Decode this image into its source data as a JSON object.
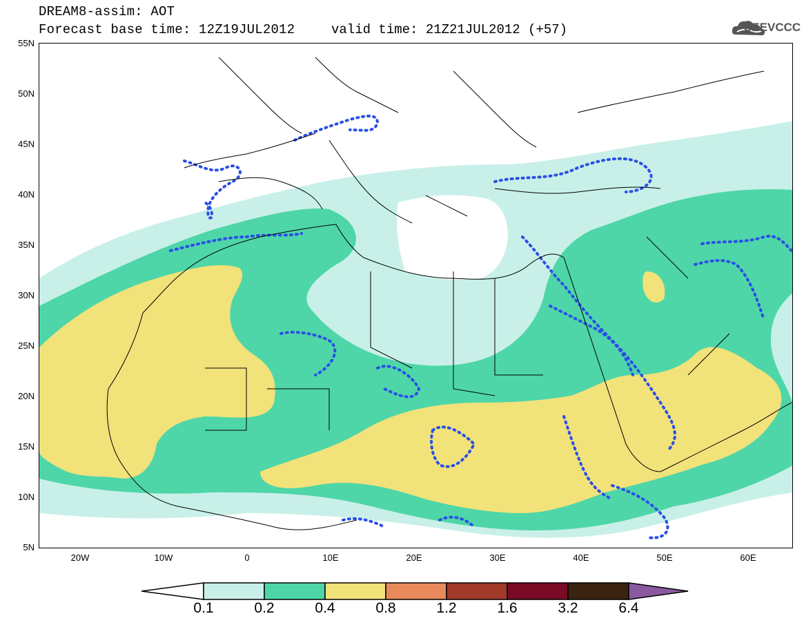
{
  "header": {
    "title": "DREAM8-assim: AOT",
    "base_time": "Forecast base time: 12Z19JUL2012",
    "valid_time": "valid time: 21Z21JUL2012 (+57)"
  },
  "logo": {
    "text": "SEEVCCC",
    "icon": "cloud-logo-icon"
  },
  "map": {
    "lat_labels": [
      "55N",
      "50N",
      "45N",
      "40N",
      "35N",
      "30N",
      "25N",
      "20N",
      "15N",
      "10N",
      "5N"
    ],
    "lon_labels": [
      "20W",
      "10W",
      "0",
      "10E",
      "20E",
      "30E",
      "40E",
      "50E",
      "60E"
    ],
    "lat_range": [
      5,
      55
    ],
    "lon_range": [
      -25,
      65
    ],
    "colors": {
      "c1": "#c8f0e8",
      "c2": "#4ed6a8",
      "c3": "#f2e27a",
      "dots": "#2a4fe6",
      "borders": "#000000"
    }
  },
  "colorbar": {
    "labels": [
      "0.1",
      "0.2",
      "0.4",
      "0.8",
      "1.2",
      "1.6",
      "3.2",
      "6.4"
    ],
    "colors": [
      "#ffffff",
      "#c8f0e8",
      "#4ed6a8",
      "#f2e27a",
      "#e98a5c",
      "#a23a2a",
      "#7a0a26",
      "#3a2310",
      "#8a5aa0"
    ]
  }
}
